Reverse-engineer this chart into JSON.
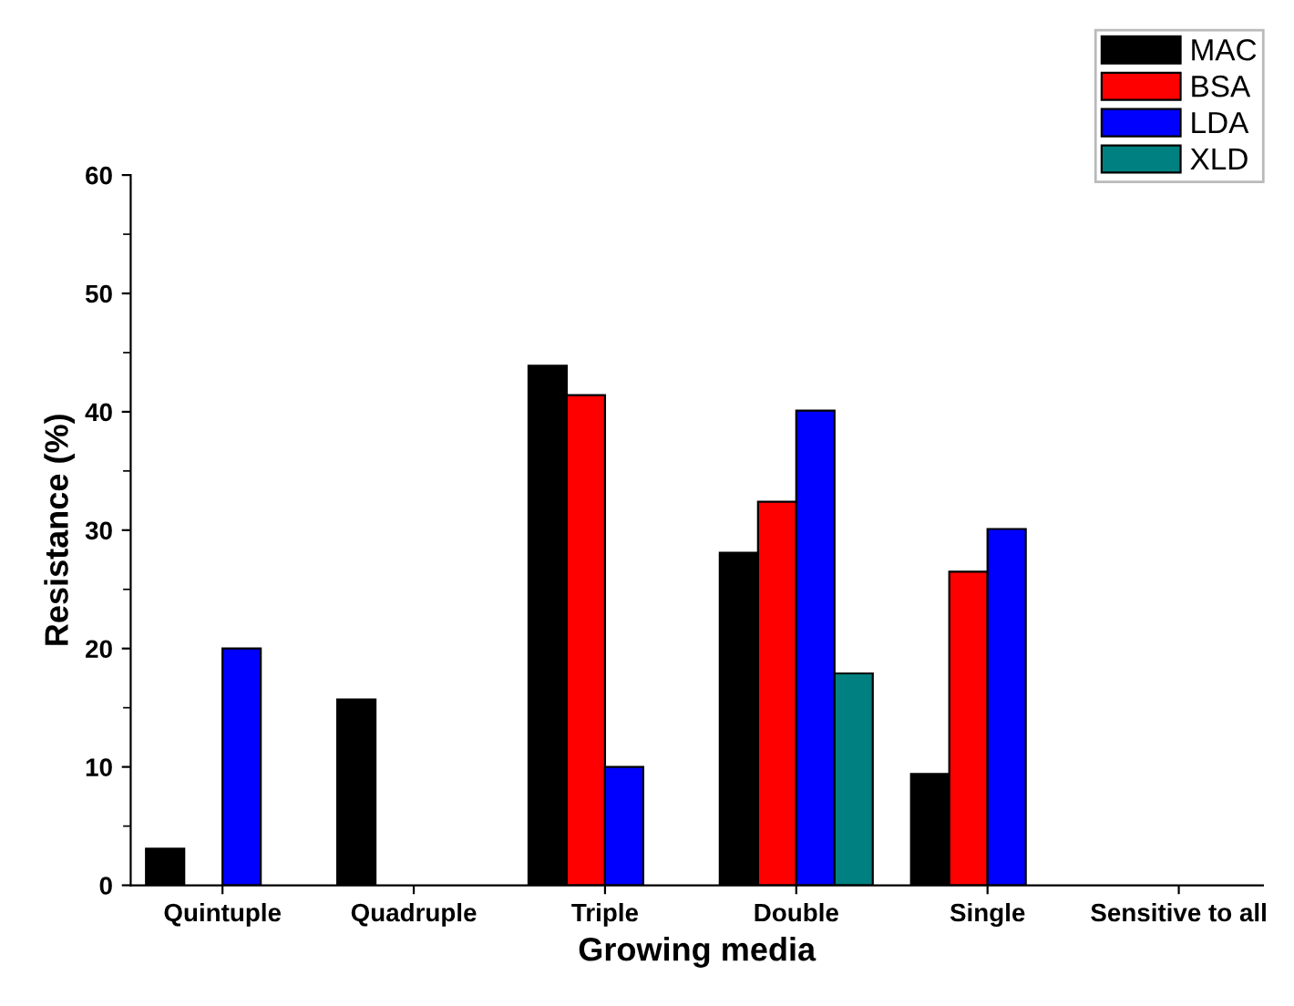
{
  "chart_data": {
    "type": "bar",
    "xlabel": "Growing media",
    "ylabel": "Resistance (%)",
    "categories": [
      "Quintuple",
      "Quadruple",
      "Triple",
      "Double",
      "Single",
      "Sensitive to all"
    ],
    "series": [
      {
        "name": "MAC",
        "color": "#000000",
        "values": [
          3.1,
          15.7,
          43.9,
          28.1,
          9.4,
          null
        ]
      },
      {
        "name": "BSA",
        "color": "#ff0000",
        "values": [
          null,
          null,
          41.4,
          32.4,
          26.5,
          null
        ]
      },
      {
        "name": "LDA",
        "color": "#0000ff",
        "values": [
          20,
          null,
          10,
          40.1,
          30.1,
          null
        ]
      },
      {
        "name": "XLD",
        "color": "#008080",
        "values": [
          null,
          null,
          null,
          17.9,
          null,
          null
        ]
      }
    ],
    "ylim": [
      0,
      60
    ],
    "yticks": [
      0,
      10,
      20,
      30,
      40,
      50,
      60
    ],
    "grid": false,
    "legend": "top right"
  }
}
